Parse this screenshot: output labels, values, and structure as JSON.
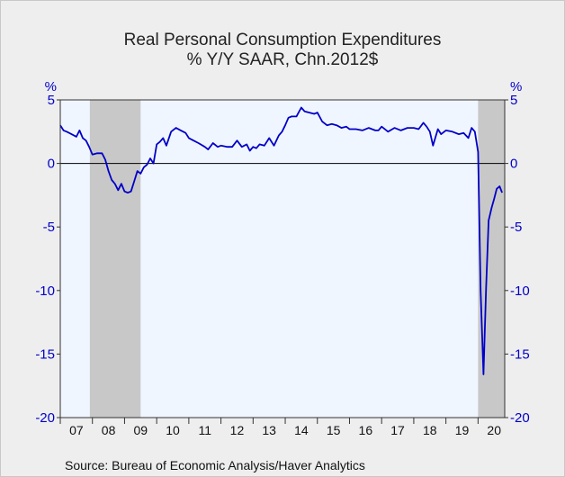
{
  "title": "Real Personal Consumption Expenditures",
  "subtitle": "% Y/Y   SAAR, Chn.2012$",
  "source": "Source:  Bureau of Economic Analysis/Haver Analytics",
  "colors": {
    "line": "#0000c8",
    "axis_text": "#0000c8",
    "plot_bg": "#f0f6ff",
    "recession": "#c8c8c8",
    "frame_bg": "#eeeeee"
  },
  "chart_data": {
    "type": "line",
    "ylabel_left": "%",
    "ylabel_right": "%",
    "ylim": [
      -20,
      5
    ],
    "yticks": [
      5,
      0,
      -5,
      -10,
      -15,
      -20
    ],
    "ytick_labels": [
      "5",
      "0",
      "-5",
      "-10",
      "-15",
      "-20"
    ],
    "xlim": [
      2007.0,
      2020.83
    ],
    "xtick_labels": [
      "07",
      "08",
      "09",
      "10",
      "11",
      "12",
      "13",
      "14",
      "15",
      "16",
      "17",
      "18",
      "19",
      "20"
    ],
    "xtick_positions": [
      2007.5,
      2008.5,
      2009.5,
      2010.5,
      2011.5,
      2012.5,
      2013.5,
      2014.5,
      2015.5,
      2016.5,
      2017.5,
      2018.5,
      2019.5,
      2020.5
    ],
    "zero_line": 0,
    "grid": false,
    "recessions": [
      [
        2007.92,
        2009.5
      ],
      [
        2020.0,
        2020.83
      ]
    ],
    "series": [
      {
        "x": [
          2007.0,
          2007.1,
          2007.2,
          2007.35,
          2007.5,
          2007.6,
          2007.7,
          2007.8,
          2007.9,
          2008.0,
          2008.15,
          2008.3,
          2008.4,
          2008.5,
          2008.6,
          2008.7,
          2008.8,
          2008.9,
          2009.0,
          2009.1,
          2009.2,
          2009.3,
          2009.4,
          2009.5,
          2009.6,
          2009.7,
          2009.8,
          2009.9,
          2010.0,
          2010.1,
          2010.2,
          2010.3,
          2010.45,
          2010.6,
          2010.75,
          2010.9,
          2011.0,
          2011.15,
          2011.3,
          2011.5,
          2011.6,
          2011.75,
          2011.9,
          2012.0,
          2012.2,
          2012.35,
          2012.5,
          2012.65,
          2012.8,
          2012.9,
          2013.0,
          2013.1,
          2013.2,
          2013.35,
          2013.5,
          2013.65,
          2013.8,
          2013.9,
          2014.0,
          2014.1,
          2014.2,
          2014.35,
          2014.5,
          2014.6,
          2014.75,
          2014.9,
          2015.0,
          2015.15,
          2015.3,
          2015.45,
          2015.6,
          2015.75,
          2015.9,
          2016.0,
          2016.2,
          2016.4,
          2016.6,
          2016.8,
          2016.9,
          2017.0,
          2017.2,
          2017.4,
          2017.6,
          2017.8,
          2018.0,
          2018.15,
          2018.3,
          2018.4,
          2018.5,
          2018.6,
          2018.75,
          2018.85,
          2019.0,
          2019.2,
          2019.4,
          2019.55,
          2019.7,
          2019.8,
          2019.9,
          2020.0,
          2020.08,
          2020.17,
          2020.25,
          2020.33,
          2020.42,
          2020.5,
          2020.58,
          2020.67,
          2020.75
        ],
        "y": [
          3.0,
          2.6,
          2.5,
          2.3,
          2.1,
          2.6,
          2.0,
          1.8,
          1.3,
          0.7,
          0.8,
          0.8,
          0.3,
          -0.6,
          -1.3,
          -1.6,
          -2.1,
          -1.6,
          -2.2,
          -2.3,
          -2.2,
          -1.4,
          -0.6,
          -0.8,
          -0.3,
          -0.1,
          0.4,
          0.0,
          1.5,
          1.7,
          2.0,
          1.4,
          2.5,
          2.8,
          2.6,
          2.4,
          2.0,
          1.8,
          1.6,
          1.3,
          1.1,
          1.6,
          1.3,
          1.4,
          1.3,
          1.3,
          1.8,
          1.3,
          1.5,
          1.0,
          1.3,
          1.2,
          1.5,
          1.4,
          2.0,
          1.4,
          2.2,
          2.5,
          3.0,
          3.6,
          3.7,
          3.7,
          4.4,
          4.1,
          4.0,
          3.9,
          4.0,
          3.3,
          3.0,
          3.1,
          3.0,
          2.8,
          2.9,
          2.7,
          2.7,
          2.6,
          2.8,
          2.6,
          2.6,
          2.9,
          2.5,
          2.8,
          2.6,
          2.8,
          2.8,
          2.7,
          3.2,
          2.9,
          2.5,
          1.4,
          2.7,
          2.3,
          2.6,
          2.5,
          2.3,
          2.4,
          2.0,
          2.8,
          2.5,
          0.9,
          -10.0,
          -16.6,
          -9.8,
          -4.5,
          -3.5,
          -2.8,
          -2.0,
          -1.8,
          -2.3
        ]
      }
    ]
  }
}
